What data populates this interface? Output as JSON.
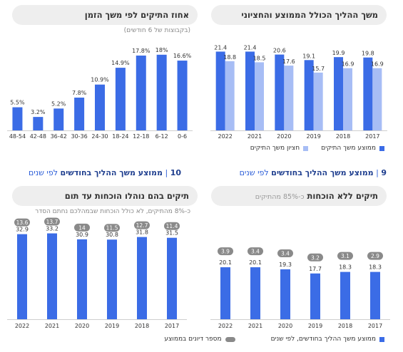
{
  "colors": {
    "dark_bar": "#3b6ce6",
    "light_bar": "#a7bdf5",
    "pill_badge": "#8a8a8a",
    "pill_bg": "#eeeeee",
    "accent": "#2c5ed8",
    "title_blue": "#1f3f8f"
  },
  "panels": {
    "top_left": {
      "title": "אחוז התיקים לפי משך הזמן",
      "subtitle": "(בקבוצות של 6 חודשים)"
    },
    "top_right": {
      "title": "משך ההליך הכולל הממוצע והחציוני"
    },
    "bottom_left": {
      "title": "תיקים בהם נוהלו הוכחות עד תום",
      "subtitle": "כ-8% מהתיקים, לא כולל הוכחות שבמהלכם נחתם הסדר"
    },
    "bottom_right": {
      "title": "תיקים ללא הוכחות",
      "title_sub": "כ-85% מהתיקים"
    }
  },
  "section_titles": {
    "left": {
      "number": "10",
      "bold": "ממוצע משך ההליך בחודשים",
      "rest": "לפי שנים"
    },
    "right": {
      "number": "9",
      "bold": "ממוצע משך ההליך בחודשים",
      "rest": "לפי שנים"
    }
  },
  "legends": {
    "top_right": {
      "mean": "ממוצע משך התיקים",
      "median": "חציון משך התיקים"
    },
    "bottom": {
      "months": "ממוצע משך ההליך בחודשים, לפי שנים",
      "hearings": "מספר דיונים בממוצע"
    }
  },
  "chart_data": [
    {
      "id": "duration_share",
      "type": "bar",
      "title": "אחוז התיקים לפי משך הזמן",
      "subtitle": "(בקבוצות של 6 חודשים)",
      "categories": [
        "0-6",
        "6-12",
        "12-18",
        "18-24",
        "24-30",
        "30-36",
        "36-42",
        "42-48",
        "48-54"
      ],
      "values": [
        16.6,
        18,
        17.8,
        14.9,
        10.9,
        7.8,
        5.2,
        3.2,
        5.5
      ],
      "labels": [
        "16.6%",
        "18%",
        "17.8%",
        "14.9%",
        "10.9%",
        "7.8%",
        "5.2%",
        "3.2%",
        "5.5%"
      ],
      "ylim": [
        0,
        20
      ]
    },
    {
      "id": "overall_duration",
      "type": "bar",
      "title": "משך ההליך הכולל הממוצע והחציוני",
      "categories": [
        "2017",
        "2018",
        "2019",
        "2020",
        "2021",
        "2022"
      ],
      "series": [
        {
          "name": "ממוצע משך התיקים",
          "values": [
            19.8,
            19.9,
            19.1,
            20.6,
            21.4,
            21.4
          ]
        },
        {
          "name": "חציון משך התיקים",
          "values": [
            16.9,
            16.9,
            15.7,
            17.6,
            18.5,
            18.8
          ]
        }
      ],
      "ylim": [
        0,
        24
      ]
    },
    {
      "id": "with_hearings",
      "type": "bar",
      "title": "תיקים בהם נוהלו הוכחות עד תום",
      "categories": [
        "2017",
        "2018",
        "2019",
        "2020",
        "2021",
        "2022"
      ],
      "series": [
        {
          "name": "ממוצע משך ההליך בחודשים, לפי שנים",
          "values": [
            31.5,
            31.8,
            30.8,
            30.9,
            33.2,
            32.9
          ]
        },
        {
          "name": "מספר דיונים בממוצע",
          "values": [
            11.4,
            12.7,
            11.5,
            14,
            13.7,
            13.6
          ]
        }
      ],
      "ylim": [
        0,
        35
      ]
    },
    {
      "id": "without_hearings",
      "type": "bar",
      "title": "תיקים ללא הוכחות",
      "categories": [
        "2017",
        "2018",
        "2019",
        "2020",
        "2021",
        "2022"
      ],
      "series": [
        {
          "name": "ממוצע משך ההליך בחודשים, לפי שנים",
          "values": [
            18.3,
            18.3,
            17.7,
            19.3,
            20.1,
            20.1
          ]
        },
        {
          "name": "מספר דיונים בממוצע",
          "values": [
            2.9,
            3.1,
            3.2,
            3.4,
            3.4,
            3.9
          ]
        }
      ],
      "ylim": [
        0,
        35
      ]
    }
  ]
}
